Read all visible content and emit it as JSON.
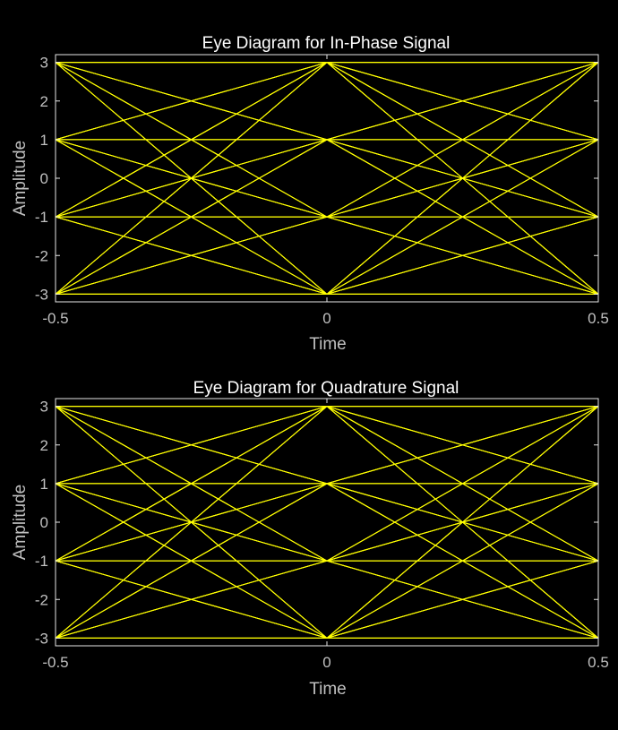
{
  "colors": {
    "background": "#000000",
    "axes": "#e6e6e6",
    "tick_text": "#c0c0c0",
    "trace": "#ffff00"
  },
  "chart_data": [
    {
      "type": "line",
      "title": "Eye Diagram for In-Phase Signal",
      "xlabel": "Time",
      "ylabel": "Amplitude",
      "xlim": [
        -0.5,
        0.5
      ],
      "ylim": [
        -3.2,
        3.2
      ],
      "xticks": [
        -0.5,
        0,
        0.5
      ],
      "xticklabels": [
        "-0.5",
        "0",
        "0.5"
      ],
      "yticks": [
        3,
        2,
        1,
        0,
        -1,
        -2,
        -3
      ],
      "yticklabels": [
        "3",
        "2",
        "1",
        "0",
        "-1",
        "-2",
        "-3"
      ],
      "grid": false,
      "box": true,
      "symbol_levels": [
        -3,
        -1,
        1,
        3
      ],
      "x": [
        -0.5,
        0,
        0.5
      ],
      "series": [
        {
          "values": [
            -3,
            -3,
            -3
          ]
        },
        {
          "values": [
            -3,
            -3,
            -1
          ]
        },
        {
          "values": [
            -3,
            -3,
            1
          ]
        },
        {
          "values": [
            -3,
            -3,
            3
          ]
        },
        {
          "values": [
            -3,
            -1,
            -3
          ]
        },
        {
          "values": [
            -3,
            -1,
            -1
          ]
        },
        {
          "values": [
            -3,
            -1,
            1
          ]
        },
        {
          "values": [
            -3,
            -1,
            3
          ]
        },
        {
          "values": [
            -3,
            1,
            -3
          ]
        },
        {
          "values": [
            -3,
            1,
            -1
          ]
        },
        {
          "values": [
            -3,
            1,
            1
          ]
        },
        {
          "values": [
            -3,
            1,
            3
          ]
        },
        {
          "values": [
            -3,
            3,
            -3
          ]
        },
        {
          "values": [
            -3,
            3,
            -1
          ]
        },
        {
          "values": [
            -3,
            3,
            1
          ]
        },
        {
          "values": [
            -3,
            3,
            3
          ]
        },
        {
          "values": [
            -1,
            -3,
            -3
          ]
        },
        {
          "values": [
            -1,
            -3,
            -1
          ]
        },
        {
          "values": [
            -1,
            -3,
            1
          ]
        },
        {
          "values": [
            -1,
            -3,
            3
          ]
        },
        {
          "values": [
            -1,
            -1,
            -3
          ]
        },
        {
          "values": [
            -1,
            -1,
            -1
          ]
        },
        {
          "values": [
            -1,
            -1,
            1
          ]
        },
        {
          "values": [
            -1,
            -1,
            3
          ]
        },
        {
          "values": [
            -1,
            1,
            -3
          ]
        },
        {
          "values": [
            -1,
            1,
            -1
          ]
        },
        {
          "values": [
            -1,
            1,
            1
          ]
        },
        {
          "values": [
            -1,
            1,
            3
          ]
        },
        {
          "values": [
            -1,
            3,
            -3
          ]
        },
        {
          "values": [
            -1,
            3,
            -1
          ]
        },
        {
          "values": [
            -1,
            3,
            1
          ]
        },
        {
          "values": [
            -1,
            3,
            3
          ]
        },
        {
          "values": [
            1,
            -3,
            -3
          ]
        },
        {
          "values": [
            1,
            -3,
            -1
          ]
        },
        {
          "values": [
            1,
            -3,
            1
          ]
        },
        {
          "values": [
            1,
            -3,
            3
          ]
        },
        {
          "values": [
            1,
            -1,
            -3
          ]
        },
        {
          "values": [
            1,
            -1,
            -1
          ]
        },
        {
          "values": [
            1,
            -1,
            1
          ]
        },
        {
          "values": [
            1,
            -1,
            3
          ]
        },
        {
          "values": [
            1,
            1,
            -3
          ]
        },
        {
          "values": [
            1,
            1,
            -1
          ]
        },
        {
          "values": [
            1,
            1,
            1
          ]
        },
        {
          "values": [
            1,
            1,
            3
          ]
        },
        {
          "values": [
            1,
            3,
            -3
          ]
        },
        {
          "values": [
            1,
            3,
            -1
          ]
        },
        {
          "values": [
            1,
            3,
            1
          ]
        },
        {
          "values": [
            1,
            3,
            3
          ]
        },
        {
          "values": [
            3,
            -3,
            -3
          ]
        },
        {
          "values": [
            3,
            -3,
            -1
          ]
        },
        {
          "values": [
            3,
            -3,
            1
          ]
        },
        {
          "values": [
            3,
            -3,
            3
          ]
        },
        {
          "values": [
            3,
            -1,
            -3
          ]
        },
        {
          "values": [
            3,
            -1,
            -1
          ]
        },
        {
          "values": [
            3,
            -1,
            1
          ]
        },
        {
          "values": [
            3,
            -1,
            3
          ]
        },
        {
          "values": [
            3,
            1,
            -3
          ]
        },
        {
          "values": [
            3,
            1,
            -1
          ]
        },
        {
          "values": [
            3,
            1,
            1
          ]
        },
        {
          "values": [
            3,
            1,
            3
          ]
        },
        {
          "values": [
            3,
            3,
            -3
          ]
        },
        {
          "values": [
            3,
            3,
            -1
          ]
        },
        {
          "values": [
            3,
            3,
            1
          ]
        },
        {
          "values": [
            3,
            3,
            3
          ]
        }
      ]
    },
    {
      "type": "line",
      "title": "Eye Diagram for Quadrature Signal",
      "xlabel": "Time",
      "ylabel": "Amplitude",
      "xlim": [
        -0.5,
        0.5
      ],
      "ylim": [
        -3.2,
        3.2
      ],
      "xticks": [
        -0.5,
        0,
        0.5
      ],
      "xticklabels": [
        "-0.5",
        "0",
        "0.5"
      ],
      "yticks": [
        3,
        2,
        1,
        0,
        -1,
        -2,
        -3
      ],
      "yticklabels": [
        "3",
        "2",
        "1",
        "0",
        "-1",
        "-2",
        "-3"
      ],
      "grid": false,
      "box": true,
      "symbol_levels": [
        -3,
        -1,
        1,
        3
      ],
      "x": [
        -0.5,
        0,
        0.5
      ],
      "series": [
        {
          "values": [
            -3,
            -3,
            -3
          ]
        },
        {
          "values": [
            -3,
            -3,
            -1
          ]
        },
        {
          "values": [
            -3,
            -3,
            1
          ]
        },
        {
          "values": [
            -3,
            -3,
            3
          ]
        },
        {
          "values": [
            -3,
            -1,
            -3
          ]
        },
        {
          "values": [
            -3,
            -1,
            -1
          ]
        },
        {
          "values": [
            -3,
            -1,
            1
          ]
        },
        {
          "values": [
            -3,
            -1,
            3
          ]
        },
        {
          "values": [
            -3,
            1,
            -3
          ]
        },
        {
          "values": [
            -3,
            1,
            -1
          ]
        },
        {
          "values": [
            -3,
            1,
            1
          ]
        },
        {
          "values": [
            -3,
            1,
            3
          ]
        },
        {
          "values": [
            -3,
            3,
            -3
          ]
        },
        {
          "values": [
            -3,
            3,
            -1
          ]
        },
        {
          "values": [
            -3,
            3,
            1
          ]
        },
        {
          "values": [
            -3,
            3,
            3
          ]
        },
        {
          "values": [
            -1,
            -3,
            -3
          ]
        },
        {
          "values": [
            -1,
            -3,
            -1
          ]
        },
        {
          "values": [
            -1,
            -3,
            1
          ]
        },
        {
          "values": [
            -1,
            -3,
            3
          ]
        },
        {
          "values": [
            -1,
            -1,
            -3
          ]
        },
        {
          "values": [
            -1,
            -1,
            -1
          ]
        },
        {
          "values": [
            -1,
            -1,
            1
          ]
        },
        {
          "values": [
            -1,
            -1,
            3
          ]
        },
        {
          "values": [
            -1,
            1,
            -3
          ]
        },
        {
          "values": [
            -1,
            1,
            -1
          ]
        },
        {
          "values": [
            -1,
            1,
            1
          ]
        },
        {
          "values": [
            -1,
            1,
            3
          ]
        },
        {
          "values": [
            -1,
            3,
            -3
          ]
        },
        {
          "values": [
            -1,
            3,
            -1
          ]
        },
        {
          "values": [
            -1,
            3,
            1
          ]
        },
        {
          "values": [
            -1,
            3,
            3
          ]
        },
        {
          "values": [
            1,
            -3,
            -3
          ]
        },
        {
          "values": [
            1,
            -3,
            -1
          ]
        },
        {
          "values": [
            1,
            -3,
            1
          ]
        },
        {
          "values": [
            1,
            -3,
            3
          ]
        },
        {
          "values": [
            1,
            -1,
            -3
          ]
        },
        {
          "values": [
            1,
            -1,
            -1
          ]
        },
        {
          "values": [
            1,
            -1,
            1
          ]
        },
        {
          "values": [
            1,
            -1,
            3
          ]
        },
        {
          "values": [
            1,
            1,
            -3
          ]
        },
        {
          "values": [
            1,
            1,
            -1
          ]
        },
        {
          "values": [
            1,
            1,
            1
          ]
        },
        {
          "values": [
            1,
            1,
            3
          ]
        },
        {
          "values": [
            1,
            3,
            -3
          ]
        },
        {
          "values": [
            1,
            3,
            -1
          ]
        },
        {
          "values": [
            1,
            3,
            1
          ]
        },
        {
          "values": [
            1,
            3,
            3
          ]
        },
        {
          "values": [
            3,
            -3,
            -3
          ]
        },
        {
          "values": [
            3,
            -3,
            -1
          ]
        },
        {
          "values": [
            3,
            -3,
            1
          ]
        },
        {
          "values": [
            3,
            -3,
            3
          ]
        },
        {
          "values": [
            3,
            -1,
            -3
          ]
        },
        {
          "values": [
            3,
            -1,
            -1
          ]
        },
        {
          "values": [
            3,
            -1,
            1
          ]
        },
        {
          "values": [
            3,
            -1,
            3
          ]
        },
        {
          "values": [
            3,
            1,
            -3
          ]
        },
        {
          "values": [
            3,
            1,
            -1
          ]
        },
        {
          "values": [
            3,
            1,
            1
          ]
        },
        {
          "values": [
            3,
            1,
            3
          ]
        },
        {
          "values": [
            3,
            3,
            -3
          ]
        },
        {
          "values": [
            3,
            3,
            -1
          ]
        },
        {
          "values": [
            3,
            3,
            1
          ]
        },
        {
          "values": [
            3,
            3,
            3
          ]
        }
      ]
    }
  ]
}
